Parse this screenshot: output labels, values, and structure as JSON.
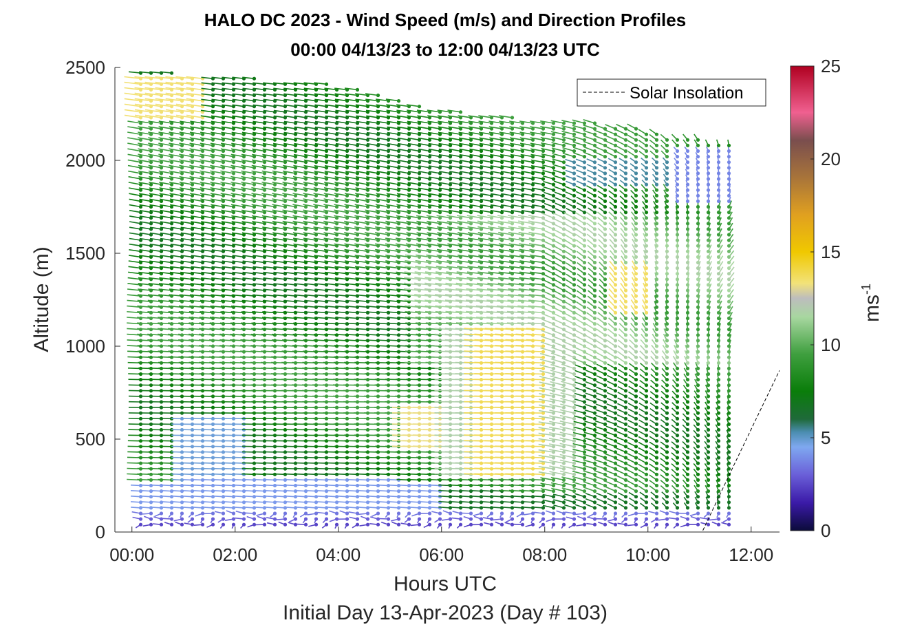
{
  "chart_data": {
    "type": "scatter",
    "title_line1": "HALO DC 2023 - Wind Speed (m/s) and Direction Profiles",
    "title_line2": "00:00 04/13/23 to 12:00 04/13/23  UTC",
    "xlabel": "Hours UTC",
    "xlabel2": "Initial Day 13-Apr-2023 (Day # 103)",
    "ylabel": "Altitude (m)",
    "colorbar_label": "ms",
    "colorbar_label_exp": "-1",
    "xlim": [
      -0.33,
      12.55
    ],
    "ylim": [
      0,
      2500
    ],
    "x_ticks": [
      0,
      2,
      4,
      6,
      8,
      10,
      12
    ],
    "x_tick_labels": [
      "00:00",
      "02:00",
      "04:00",
      "06:00",
      "08:00",
      "10:00",
      "12:00"
    ],
    "y_ticks": [
      0,
      500,
      1000,
      1500,
      2000,
      2500
    ],
    "y_tick_labels": [
      "0",
      "500",
      "1000",
      "1500",
      "2000",
      "2500"
    ],
    "colorbar_ticks": [
      0,
      5,
      10,
      15,
      20,
      25
    ],
    "colorbar_tick_labels": [
      "0",
      "5",
      "10",
      "15",
      "20",
      "25"
    ],
    "colorbar_range": [
      0,
      25
    ],
    "legend": {
      "label": "Solar Insolation",
      "placement": "top-right"
    },
    "solar_insolation": {
      "x": [
        -0.33,
        11.05,
        11.7,
        12.55
      ],
      "y": [
        0,
        0,
        380,
        870
      ]
    },
    "profiles": {
      "time_start": 0.17,
      "time_step": 0.2,
      "time_count": 58,
      "altitude_start": 40,
      "altitude_step": 30,
      "top_altitude": [
        2490,
        2400,
        2300,
        2240,
        2190,
        2130,
        2090
      ],
      "top_altitude_times": [
        0,
        4.3,
        5.5,
        7.0,
        9.5,
        10.5,
        11.8
      ]
    },
    "speed_regimes": [
      {
        "region": "surface (<120 m)",
        "speed_ms": 2.0
      },
      {
        "region": "nocturnal layer 200-600 m, 01:00-02:00",
        "speed_ms": 4.5
      },
      {
        "region": "jet 300-1100 m, 06:00-08:30",
        "speed_ms": 13.5
      },
      {
        "region": "upper 1200-1400 m, 09:30-10:00",
        "speed_ms": 13.5
      },
      {
        "region": "upper 1800-2000 m, 10:30-11:50",
        "speed_ms": 3.5
      },
      {
        "region": "background",
        "speed_ms": 9.0
      }
    ],
    "colorscale": [
      {
        "value": 0,
        "color": "#0b0b3a"
      },
      {
        "value": 1.5,
        "color": "#3b1aa8"
      },
      {
        "value": 3,
        "color": "#6a5fd8"
      },
      {
        "value": 4.5,
        "color": "#7fa8f0"
      },
      {
        "value": 5.3,
        "color": "#4b8db0"
      },
      {
        "value": 6,
        "color": "#1f6a3a"
      },
      {
        "value": 7.5,
        "color": "#0a7d0a"
      },
      {
        "value": 9.5,
        "color": "#3f9f3f"
      },
      {
        "value": 11.5,
        "color": "#a8d7a0"
      },
      {
        "value": 12.5,
        "color": "#bdbdbd"
      },
      {
        "value": 13.3,
        "color": "#f2e27a"
      },
      {
        "value": 15,
        "color": "#f0c800"
      },
      {
        "value": 17,
        "color": "#e0a020"
      },
      {
        "value": 19,
        "color": "#a8743a"
      },
      {
        "value": 21,
        "color": "#7a4e4e"
      },
      {
        "value": 22.5,
        "color": "#f06090"
      },
      {
        "value": 25,
        "color": "#b00020"
      }
    ]
  }
}
